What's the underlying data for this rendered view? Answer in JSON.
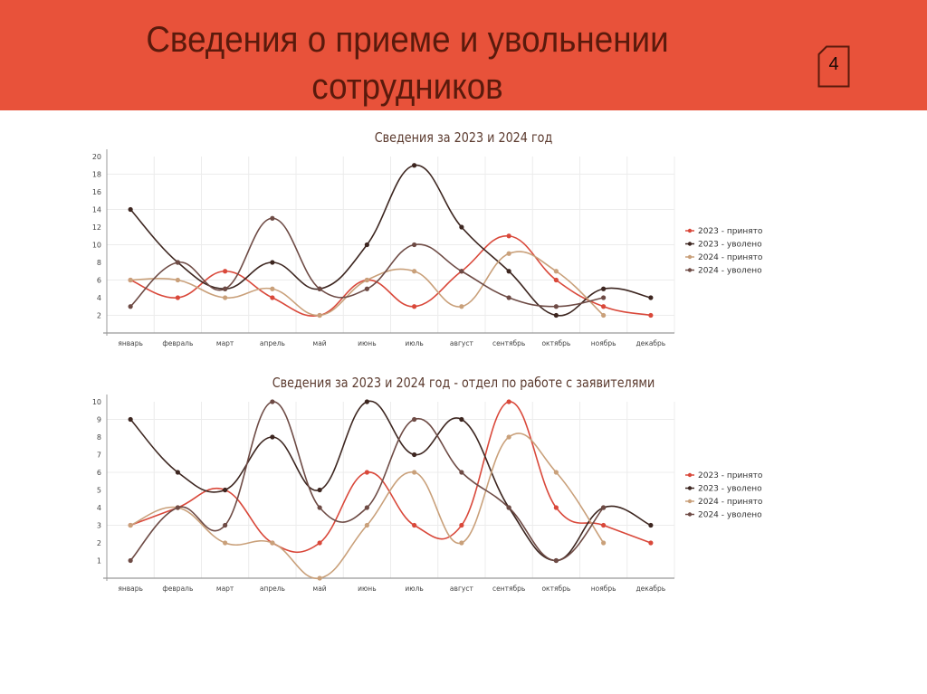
{
  "slide": {
    "title_line1": "Сведения о приеме и увольнении",
    "title_line2": "сотрудников",
    "page_number": "4",
    "header_bg": "#e8523a",
    "title_color": "#5a1a0c"
  },
  "series_colors": {
    "2023_hired": "#d9483a",
    "2023_fired": "#3d2620",
    "2024_hired": "#c9a07a",
    "2024_fired": "#6e4b45"
  },
  "chart_data": [
    {
      "type": "line",
      "title": "Сведения за 2023 и 2024 год",
      "xlabel": "",
      "ylabel": "",
      "ylim": [
        0,
        20
      ],
      "yticks": [
        2,
        4,
        6,
        8,
        10,
        12,
        14,
        16,
        18,
        20
      ],
      "grid": true,
      "legend_position": "right",
      "categories": [
        "январь",
        "февраль",
        "март",
        "апрель",
        "май",
        "июнь",
        "июль",
        "август",
        "сентябрь",
        "октябрь",
        "ноябрь",
        "декабрь"
      ],
      "series": [
        {
          "name": "2023 - принято",
          "color": "#d9483a",
          "values": [
            6,
            4,
            7,
            4,
            2,
            6,
            3,
            7,
            11,
            6,
            3,
            2
          ]
        },
        {
          "name": "2023 - уволено",
          "color": "#3d2620",
          "values": [
            14,
            8,
            5,
            8,
            5,
            10,
            19,
            12,
            7,
            2,
            5,
            4
          ]
        },
        {
          "name": "2024 - принято",
          "color": "#c9a07a",
          "values": [
            6,
            6,
            4,
            5,
            2,
            6,
            7,
            3,
            9,
            7,
            2,
            null
          ]
        },
        {
          "name": "2024 - уволено",
          "color": "#6e4b45",
          "values": [
            3,
            8,
            5,
            13,
            5,
            5,
            10,
            7,
            4,
            3,
            4,
            null
          ]
        }
      ]
    },
    {
      "type": "line",
      "title": "Сведения за 2023 и 2024 год - отдел по работе с заявителями",
      "xlabel": "",
      "ylabel": "",
      "ylim": [
        0,
        10
      ],
      "yticks": [
        1,
        2,
        3,
        4,
        5,
        6,
        7,
        8,
        9,
        10
      ],
      "grid": true,
      "legend_position": "right",
      "categories": [
        "январь",
        "февраль",
        "март",
        "апрель",
        "май",
        "июнь",
        "июль",
        "август",
        "сентябрь",
        "октябрь",
        "ноябрь",
        "декабрь"
      ],
      "series": [
        {
          "name": "2023 - принято",
          "color": "#d9483a",
          "values": [
            3,
            4,
            5,
            2,
            2,
            6,
            3,
            3,
            10,
            4,
            3,
            2
          ]
        },
        {
          "name": "2023 - уволено",
          "color": "#3d2620",
          "values": [
            9,
            6,
            5,
            8,
            5,
            10,
            7,
            9,
            4,
            1,
            4,
            3
          ]
        },
        {
          "name": "2024 - принято",
          "color": "#c9a07a",
          "values": [
            3,
            4,
            2,
            2,
            0,
            3,
            6,
            2,
            8,
            6,
            2,
            null
          ]
        },
        {
          "name": "2024 - уволено",
          "color": "#6e4b45",
          "values": [
            1,
            4,
            3,
            10,
            4,
            4,
            9,
            6,
            4,
            1,
            4,
            null
          ]
        }
      ]
    }
  ]
}
